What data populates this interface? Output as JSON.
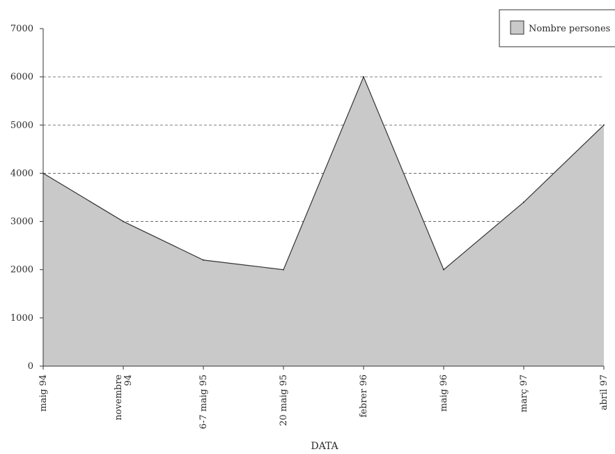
{
  "chart_data": {
    "type": "area",
    "title": "",
    "xlabel": "DATA",
    "ylabel": "",
    "categories": [
      "maig 94",
      "novembre 94",
      "6-7 maig 95",
      "20 maig 95",
      "febrer 96",
      "maig 96",
      "març 97",
      "abril 97"
    ],
    "series": [
      {
        "name": "Nombre persones",
        "values": [
          4000,
          3000,
          2200,
          2000,
          6000,
          2000,
          3400,
          5000
        ]
      }
    ],
    "ylim": [
      0,
      7000
    ],
    "yticks": [
      0,
      1000,
      2000,
      3000,
      4000,
      5000,
      6000,
      7000
    ],
    "grid": "horizontal dashed",
    "legend_position": "top-right",
    "colors": {
      "fill": "#c9c9c9",
      "line": "#333333",
      "grid": "#555555"
    }
  }
}
